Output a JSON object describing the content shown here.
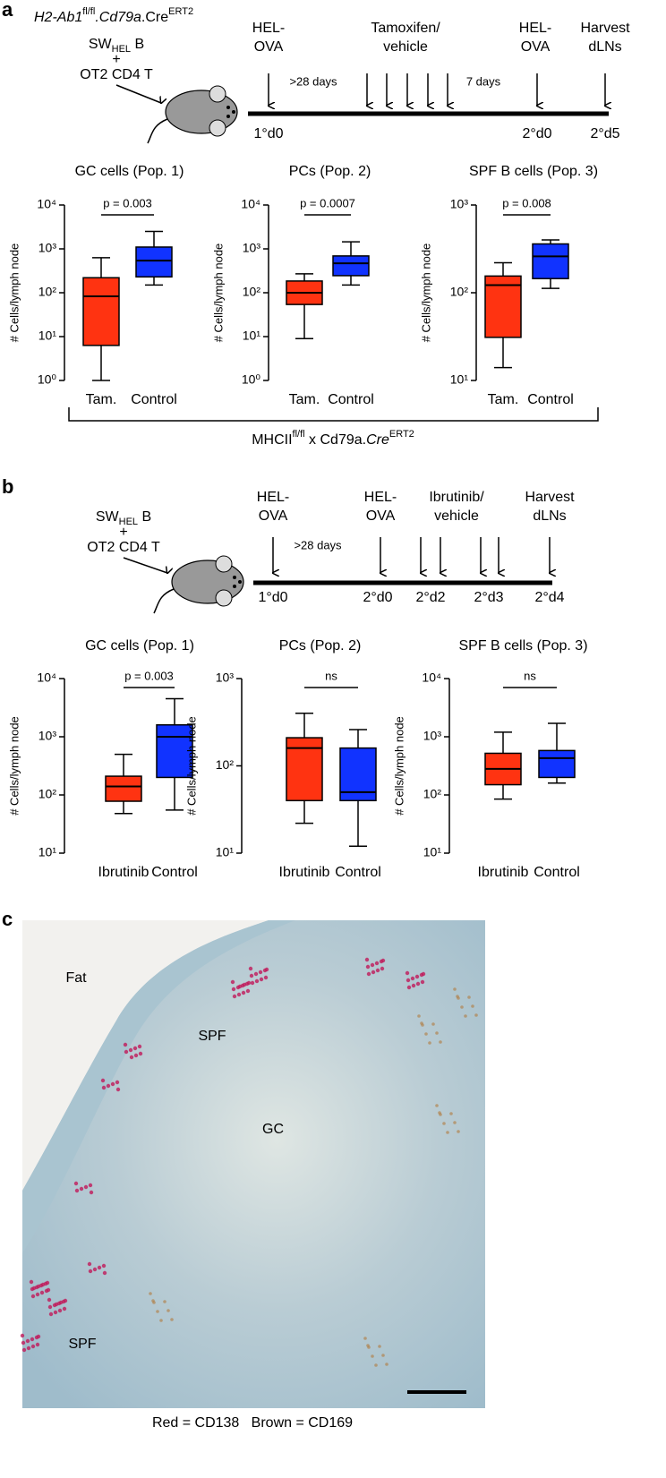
{
  "chart_data": [
    {
      "type": "box",
      "title": "GC cells (Pop. 1)",
      "ylabel": "# Cells/lymph node",
      "categories": [
        "Tam.",
        "Control"
      ],
      "colors": [
        "#ff3311",
        "#1133ff"
      ],
      "boxes": [
        {
          "whislo": 1,
          "q1": 6.3,
          "med": 83,
          "q3": 220,
          "whishi": 630
        },
        {
          "whislo": 150,
          "q1": 230,
          "med": 540,
          "q3": 1100,
          "whishi": 2500
        }
      ],
      "annotation": "p = 0.003",
      "log_scale": true,
      "ylim": [
        1,
        10000
      ],
      "yticks": [
        {
          "value": 1,
          "label": "10⁰"
        },
        {
          "value": 10,
          "label": "10¹"
        },
        {
          "value": 100,
          "label": "10²"
        },
        {
          "value": 1000,
          "label": "10³"
        },
        {
          "value": 10000,
          "label": "10⁴"
        }
      ]
    },
    {
      "type": "box",
      "title": "PCs (Pop. 2)",
      "ylabel": "# Cells/lymph node",
      "categories": [
        "Tam.",
        "Control"
      ],
      "colors": [
        "#ff3311",
        "#1133ff"
      ],
      "boxes": [
        {
          "whislo": 9,
          "q1": 54,
          "med": 100,
          "q3": 185,
          "whishi": 270
        },
        {
          "whislo": 150,
          "q1": 245,
          "med": 470,
          "q3": 690,
          "whishi": 1450
        }
      ],
      "annotation": "p = 0.0007",
      "log_scale": true,
      "ylim": [
        1,
        10000
      ],
      "yticks": [
        {
          "value": 1,
          "label": "10⁰"
        },
        {
          "value": 10,
          "label": "10¹"
        },
        {
          "value": 100,
          "label": "10²"
        },
        {
          "value": 1000,
          "label": "10³"
        },
        {
          "value": 10000,
          "label": "10⁴"
        }
      ]
    },
    {
      "type": "box",
      "title": "SPF B cells (Pop. 3)",
      "ylabel": "# Cells/lymph node",
      "categories": [
        "Tam.",
        "Control"
      ],
      "colors": [
        "#ff3311",
        "#1133ff"
      ],
      "boxes": [
        {
          "whislo": 14,
          "q1": 31,
          "med": 122,
          "q3": 155,
          "whishi": 220
        },
        {
          "whislo": 112,
          "q1": 145,
          "med": 260,
          "q3": 360,
          "whishi": 400
        }
      ],
      "annotation": "p = 0.008",
      "log_scale": true,
      "ylim": [
        10,
        1000
      ],
      "yticks": [
        {
          "value": 10,
          "label": "10¹"
        },
        {
          "value": 100,
          "label": "10²"
        },
        {
          "value": 1000,
          "label": "10³"
        }
      ]
    },
    {
      "type": "box",
      "title": "GC cells (Pop. 1)",
      "ylabel": "# Cells/lymph node",
      "categories": [
        "Ibrutinib",
        "Control"
      ],
      "colors": [
        "#ff3311",
        "#1133ff"
      ],
      "boxes": [
        {
          "whislo": 48,
          "q1": 78,
          "med": 140,
          "q3": 210,
          "whishi": 500
        },
        {
          "whislo": 55,
          "q1": 200,
          "med": 1000,
          "q3": 1600,
          "whishi": 4500
        }
      ],
      "annotation": "p = 0.003",
      "log_scale": true,
      "ylim": [
        10,
        10000
      ],
      "yticks": [
        {
          "value": 10,
          "label": "10¹"
        },
        {
          "value": 100,
          "label": "10²"
        },
        {
          "value": 1000,
          "label": "10³"
        },
        {
          "value": 10000,
          "label": "10⁴"
        }
      ]
    },
    {
      "type": "box",
      "title": "PCs (Pop. 2)",
      "ylabel": "# Cells/lymph node",
      "categories": [
        "Ibrutinib",
        "Control"
      ],
      "colors": [
        "#ff3311",
        "#1133ff"
      ],
      "boxes": [
        {
          "whislo": 22,
          "q1": 40,
          "med": 160,
          "q3": 210,
          "whishi": 400
        },
        {
          "whislo": 12,
          "q1": 40,
          "med": 50,
          "q3": 160,
          "whishi": 260
        }
      ],
      "annotation": "ns",
      "log_scale": true,
      "ylim": [
        10,
        1000
      ],
      "yticks": [
        {
          "value": 10,
          "label": "10¹"
        },
        {
          "value": 100,
          "label": "10²"
        },
        {
          "value": 1000,
          "label": "10³"
        }
      ]
    },
    {
      "type": "box",
      "title": "SPF B cells (Pop. 3)",
      "ylabel": "# Cells/lymph node",
      "categories": [
        "Ibrutinib",
        "Control"
      ],
      "colors": [
        "#ff3311",
        "#1133ff"
      ],
      "boxes": [
        {
          "whislo": 85,
          "q1": 150,
          "med": 280,
          "q3": 520,
          "whishi": 1200
        },
        {
          "whislo": 160,
          "q1": 200,
          "med": 430,
          "q3": 580,
          "whishi": 1700
        }
      ],
      "annotation": "ns",
      "log_scale": true,
      "ylim": [
        10,
        10000
      ],
      "yticks": [
        {
          "value": 10,
          "label": "10¹"
        },
        {
          "value": 100,
          "label": "10²"
        },
        {
          "value": 1000,
          "label": "10³"
        },
        {
          "value": 10000,
          "label": "10⁴"
        }
      ]
    }
  ],
  "panel_a": {
    "label": "a",
    "genotype": [
      {
        "text": "H2-Ab1",
        "style": "italic"
      },
      {
        "text": "fl/fl",
        "style": "sup"
      },
      {
        "text": ".Cd79a",
        "style": "italic"
      },
      {
        "text": ".Cre"
      },
      {
        "text": "ERT2",
        "style": "sup"
      }
    ],
    "mouse_lines": [
      [
        {
          "text": "SW"
        },
        {
          "text": "HEL",
          "style": "sub"
        },
        {
          "text": " B"
        }
      ],
      [
        {
          "text": "+"
        }
      ],
      [
        {
          "text": "OT2 CD4 T"
        }
      ]
    ],
    "events": [
      {
        "lines": [
          "HEL-",
          "OVA"
        ]
      },
      {
        "lines": [
          "Tamoxifen/",
          "vehicle"
        ]
      },
      {
        "lines": [
          "HEL-",
          "OVA"
        ]
      },
      {
        "lines": [
          "Harvest",
          "dLNs"
        ]
      }
    ],
    "intervals": [
      ">28 days",
      "7 days"
    ],
    "days": [
      "1°d0",
      "2°d0",
      "2°d5"
    ],
    "bracket_label": [
      {
        "text": "MHCII"
      },
      {
        "text": "fl/fl",
        "style": "sup"
      },
      {
        "text": " x Cd79a."
      },
      {
        "text": "Cre",
        "style": "italic"
      },
      {
        "text": "ERT2",
        "style": "sup"
      }
    ]
  },
  "panel_b": {
    "label": "b",
    "mouse_lines": [
      [
        {
          "text": "SW"
        },
        {
          "text": "HEL",
          "style": "sub"
        },
        {
          "text": " B"
        }
      ],
      [
        {
          "text": "+"
        }
      ],
      [
        {
          "text": "OT2 CD4 T"
        }
      ]
    ],
    "events": [
      {
        "lines": [
          "HEL-",
          "OVA"
        ]
      },
      {
        "lines": [
          "HEL-",
          "OVA"
        ]
      },
      {
        "lines": [
          "Ibrutinib/",
          "vehicle"
        ]
      },
      {
        "lines": [
          "Harvest",
          "dLNs"
        ]
      }
    ],
    "intervals": [
      ">28 days"
    ],
    "days": [
      "1°d0",
      "2°d0",
      "2°d2",
      "2°d3",
      "2°d4"
    ]
  },
  "panel_c": {
    "label": "c",
    "regions": [
      "Fat",
      "SPF",
      "GC",
      "SPF"
    ],
    "caption": "Red = CD138   Brown = CD169"
  }
}
